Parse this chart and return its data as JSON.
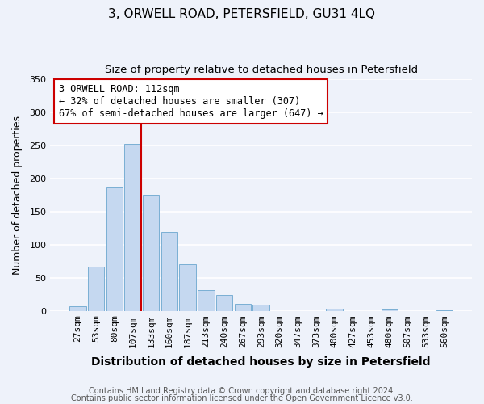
{
  "title": "3, ORWELL ROAD, PETERSFIELD, GU31 4LQ",
  "subtitle": "Size of property relative to detached houses in Petersfield",
  "xlabel": "Distribution of detached houses by size in Petersfield",
  "ylabel": "Number of detached properties",
  "bar_labels": [
    "27sqm",
    "53sqm",
    "80sqm",
    "107sqm",
    "133sqm",
    "160sqm",
    "187sqm",
    "213sqm",
    "240sqm",
    "267sqm",
    "293sqm",
    "320sqm",
    "347sqm",
    "373sqm",
    "400sqm",
    "427sqm",
    "453sqm",
    "480sqm",
    "507sqm",
    "533sqm",
    "560sqm"
  ],
  "bar_values": [
    7,
    67,
    186,
    253,
    175,
    119,
    70,
    31,
    24,
    11,
    9,
    0,
    0,
    0,
    3,
    0,
    0,
    2,
    0,
    0,
    1
  ],
  "bar_color": "#c5d8f0",
  "bar_edge_color": "#7aafd4",
  "property_line_label": "3 ORWELL ROAD: 112sqm",
  "annotation_line1": "← 32% of detached houses are smaller (307)",
  "annotation_line2": "67% of semi-detached houses are larger (647) →",
  "annotation_box_color": "#ffffff",
  "annotation_box_edge": "#cc0000",
  "vline_color": "#cc0000",
  "vline_x_index": 3,
  "ylim": [
    0,
    350
  ],
  "yticks": [
    0,
    50,
    100,
    150,
    200,
    250,
    300,
    350
  ],
  "footer1": "Contains HM Land Registry data © Crown copyright and database right 2024.",
  "footer2": "Contains public sector information licensed under the Open Government Licence v3.0.",
  "background_color": "#eef2fa",
  "grid_color": "#ffffff",
  "title_fontsize": 11,
  "subtitle_fontsize": 9.5,
  "xlabel_fontsize": 10,
  "ylabel_fontsize": 9,
  "tick_fontsize": 8,
  "annotation_fontsize": 8.5,
  "footer_fontsize": 7
}
